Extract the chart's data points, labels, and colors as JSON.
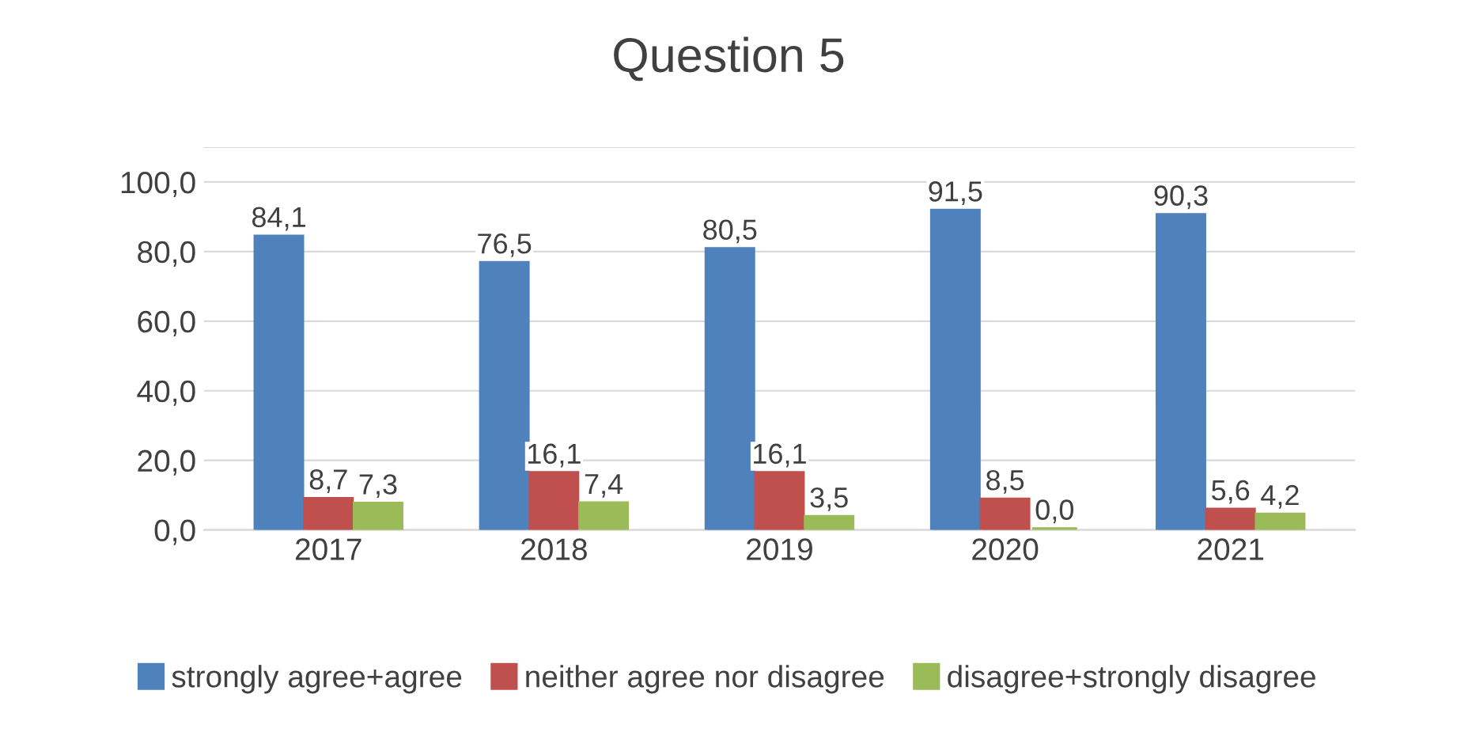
{
  "chart_data": {
    "type": "bar",
    "title": "Question 5",
    "categories": [
      "2017",
      "2018",
      "2019",
      "2020",
      "2021"
    ],
    "series": [
      {
        "name": "strongly agree+agree",
        "color": "#4f81bd",
        "values": [
          84.1,
          76.5,
          80.5,
          91.5,
          90.3
        ],
        "value_labels": [
          "84,1",
          "76,5",
          "80,5",
          "91,5",
          "90,3"
        ]
      },
      {
        "name": "neither agree nor disagree",
        "color": "#c0504d",
        "values": [
          8.7,
          16.1,
          16.1,
          8.5,
          5.6
        ],
        "value_labels": [
          "8,7",
          "16,1",
          "16,1",
          "8,5",
          "5,6"
        ]
      },
      {
        "name": "disagree+strongly disagree",
        "color": "#9bbb59",
        "values": [
          7.3,
          7.4,
          3.5,
          0.0,
          4.2
        ],
        "value_labels": [
          "7,3",
          "7,4",
          "3,5",
          "0,0",
          "4,2"
        ]
      }
    ],
    "ylim": [
      0,
      110
    ],
    "yticks": [
      {
        "value": 0,
        "label": "0,0"
      },
      {
        "value": 20,
        "label": "20,0"
      },
      {
        "value": 40,
        "label": "40,0"
      },
      {
        "value": 60,
        "label": "60,0"
      },
      {
        "value": 80,
        "label": "80,0"
      },
      {
        "value": 100,
        "label": "100,0"
      },
      {
        "value": 110,
        "label": null
      }
    ],
    "grid": "y",
    "legend": "bottom"
  }
}
